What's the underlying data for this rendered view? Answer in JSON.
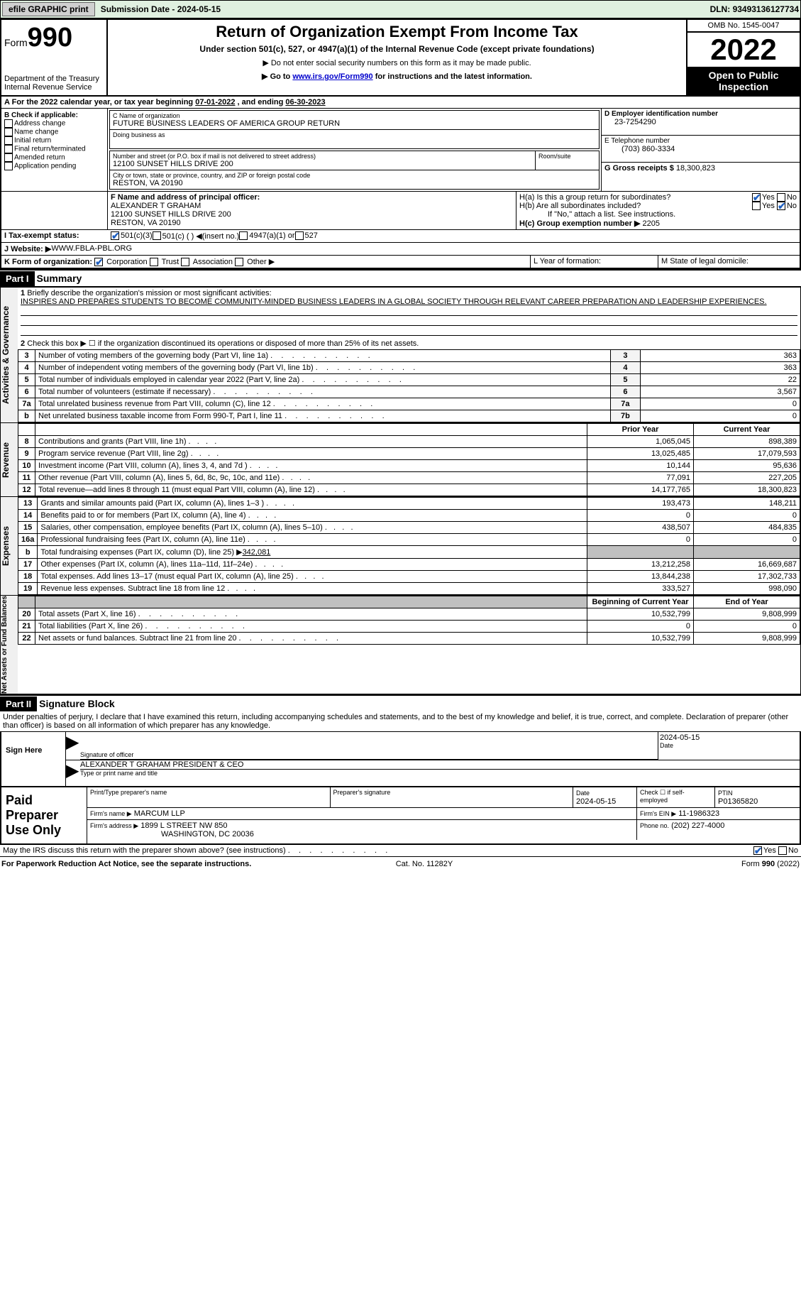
{
  "topbar": {
    "efile": "efile GRAPHIC print",
    "subdate_label": "Submission Date - ",
    "subdate": "2024-05-15",
    "dln_label": "DLN: ",
    "dln": "93493136127734"
  },
  "header": {
    "form_label": "Form",
    "form_num": "990",
    "dept": "Department of the Treasury",
    "irs": "Internal Revenue Service",
    "title": "Return of Organization Exempt From Income Tax",
    "subtitle": "Under section 501(c), 527, or 4947(a)(1) of the Internal Revenue Code (except private foundations)",
    "note1": "Do not enter social security numbers on this form as it may be made public.",
    "note2_pre": "Go to ",
    "note2_link": "www.irs.gov/Form990",
    "note2_post": " for instructions and the latest information.",
    "omb": "OMB No. 1545-0047",
    "year": "2022",
    "inspect": "Open to Public Inspection"
  },
  "A": {
    "text": "For the 2022 calendar year, or tax year beginning ",
    "begin": "07-01-2022",
    "mid": " , and ending ",
    "end": "06-30-2023"
  },
  "B": {
    "label": "B Check if applicable:",
    "opts": [
      "Address change",
      "Name change",
      "Initial return",
      "Final return/terminated",
      "Amended return",
      "Application pending"
    ]
  },
  "C": {
    "name_label": "C Name of organization",
    "name": "FUTURE BUSINESS LEADERS OF AMERICA GROUP RETURN",
    "dba_label": "Doing business as",
    "addr_label": "Number and street (or P.O. box if mail is not delivered to street address)",
    "room_label": "Room/suite",
    "addr": "12100 SUNSET HILLS DRIVE 200",
    "city_label": "City or town, state or province, country, and ZIP or foreign postal code",
    "city": "RESTON, VA  20190"
  },
  "D": {
    "label": "D Employer identification number",
    "val": "23-7254290"
  },
  "E": {
    "label": "E Telephone number",
    "val": "(703) 860-3334"
  },
  "G": {
    "label": "G Gross receipts $ ",
    "val": "18,300,823"
  },
  "F": {
    "label": "F  Name and address of principal officer:",
    "name": "ALEXANDER T GRAHAM",
    "addr": "12100 SUNSET HILLS DRIVE 200",
    "city": "RESTON, VA  20190"
  },
  "H": {
    "a_label": "H(a)  Is this a group return for subordinates?",
    "a_yes": true,
    "b_label": "H(b)  Are all subordinates included?",
    "b_no": true,
    "b_note": "If \"No,\" attach a list. See instructions.",
    "c_label": "H(c)  Group exemption number ▶",
    "c_val": "2205"
  },
  "I": {
    "label": "I  Tax-exempt status:",
    "o1": "501(c)(3)",
    "o2": "501(c) (  ) ◀(insert no.)",
    "o3": "4947(a)(1) or",
    "o4": "527"
  },
  "J": {
    "label": "J  Website: ▶",
    "val": "WWW.FBLA-PBL.ORG"
  },
  "K": {
    "label": "K Form of organization:",
    "o1": "Corporation",
    "o2": "Trust",
    "o3": "Association",
    "o4": "Other ▶"
  },
  "L": {
    "label": "L Year of formation:"
  },
  "M": {
    "label": "M State of legal domicile:"
  },
  "partI": {
    "header": "Part I",
    "title": "Summary",
    "mission_label": "Briefly describe the organization's mission or most significant activities:",
    "mission": "INSPIRES AND PREPARES STUDENTS TO BECOME COMMUNITY-MINDED BUSINESS LEADERS IN A GLOBAL SOCIETY THROUGH RELEVANT CAREER PREPARATION AND LEADERSHIP EXPERIENCES.",
    "line2": "Check this box ▶ ☐  if the organization discontinued its operations or disposed of more than 25% of its net assets.",
    "rows_single": [
      {
        "n": "3",
        "label": "Number of voting members of the governing body (Part VI, line 1a)",
        "box": "3",
        "val": "363"
      },
      {
        "n": "4",
        "label": "Number of independent voting members of the governing body (Part VI, line 1b)",
        "box": "4",
        "val": "363"
      },
      {
        "n": "5",
        "label": "Total number of individuals employed in calendar year 2022 (Part V, line 2a)",
        "box": "5",
        "val": "22"
      },
      {
        "n": "6",
        "label": "Total number of volunteers (estimate if necessary)",
        "box": "6",
        "val": "3,567"
      },
      {
        "n": "7a",
        "label": "Total unrelated business revenue from Part VIII, column (C), line 12",
        "box": "7a",
        "val": "0"
      },
      {
        "n": "b",
        "label": "Net unrelated business taxable income from Form 990-T, Part I, line 11",
        "box": "7b",
        "val": "0"
      }
    ],
    "col_prior": "Prior Year",
    "col_curr": "Current Year",
    "revenue_label": "Revenue",
    "revenue": [
      {
        "n": "8",
        "label": "Contributions and grants (Part VIII, line 1h)",
        "prior": "1,065,045",
        "curr": "898,389"
      },
      {
        "n": "9",
        "label": "Program service revenue (Part VIII, line 2g)",
        "prior": "13,025,485",
        "curr": "17,079,593"
      },
      {
        "n": "10",
        "label": "Investment income (Part VIII, column (A), lines 3, 4, and 7d )",
        "prior": "10,144",
        "curr": "95,636"
      },
      {
        "n": "11",
        "label": "Other revenue (Part VIII, column (A), lines 5, 6d, 8c, 9c, 10c, and 11e)",
        "prior": "77,091",
        "curr": "227,205"
      },
      {
        "n": "12",
        "label": "Total revenue—add lines 8 through 11 (must equal Part VIII, column (A), line 12)",
        "prior": "14,177,765",
        "curr": "18,300,823"
      }
    ],
    "expenses_label": "Expenses",
    "expenses": [
      {
        "n": "13",
        "label": "Grants and similar amounts paid (Part IX, column (A), lines 1–3 )",
        "prior": "193,473",
        "curr": "148,211"
      },
      {
        "n": "14",
        "label": "Benefits paid to or for members (Part IX, column (A), line 4)",
        "prior": "0",
        "curr": "0"
      },
      {
        "n": "15",
        "label": "Salaries, other compensation, employee benefits (Part IX, column (A), lines 5–10)",
        "prior": "438,507",
        "curr": "484,835"
      },
      {
        "n": "16a",
        "label": "Professional fundraising fees (Part IX, column (A), line 11e)",
        "prior": "0",
        "curr": "0"
      }
    ],
    "line_b": "Total fundraising expenses (Part IX, column (D), line 25) ▶",
    "line_b_val": "342,081",
    "expenses2": [
      {
        "n": "17",
        "label": "Other expenses (Part IX, column (A), lines 11a–11d, 11f–24e)",
        "prior": "13,212,258",
        "curr": "16,669,687"
      },
      {
        "n": "18",
        "label": "Total expenses. Add lines 13–17 (must equal Part IX, column (A), line 25)",
        "prior": "13,844,238",
        "curr": "17,302,733"
      },
      {
        "n": "19",
        "label": "Revenue less expenses. Subtract line 18 from line 12",
        "prior": "333,527",
        "curr": "998,090"
      }
    ],
    "net_label": "Net Assets or Fund Balances",
    "col_begin": "Beginning of Current Year",
    "col_end": "End of Year",
    "net": [
      {
        "n": "20",
        "label": "Total assets (Part X, line 16)",
        "prior": "10,532,799",
        "curr": "9,808,999"
      },
      {
        "n": "21",
        "label": "Total liabilities (Part X, line 26)",
        "prior": "0",
        "curr": "0"
      },
      {
        "n": "22",
        "label": "Net assets or fund balances. Subtract line 21 from line 20",
        "prior": "10,532,799",
        "curr": "9,808,999"
      }
    ]
  },
  "partII": {
    "header": "Part II",
    "title": "Signature Block",
    "perjury": "Under penalties of perjury, I declare that I have examined this return, including accompanying schedules and statements, and to the best of my knowledge and belief, it is true, correct, and complete. Declaration of preparer (other than officer) is based on all information of which preparer has any knowledge.",
    "sign_here": "Sign Here",
    "sig_officer": "Signature of officer",
    "date_label": "Date",
    "sig_date": "2024-05-15",
    "officer_name": "ALEXANDER T GRAHAM  PRESIDENT & CEO",
    "type_name": "Type or print name and title",
    "paid_label": "Paid Preparer Use Only",
    "prep_name_label": "Print/Type preparer's name",
    "prep_sig_label": "Preparer's signature",
    "prep_date_label": "Date",
    "prep_date": "2024-05-15",
    "check_self": "Check ☐ if self-employed",
    "ptin_label": "PTIN",
    "ptin": "P01365820",
    "firm_name_label": "Firm's name    ▶",
    "firm_name": "MARCUM LLP",
    "firm_ein_label": "Firm's EIN ▶",
    "firm_ein": "11-1986323",
    "firm_addr_label": "Firm's address ▶",
    "firm_addr": "1899 L STREET NW 850",
    "firm_city": "WASHINGTON, DC  20036",
    "phone_label": "Phone no.",
    "phone": "(202) 227-4000",
    "discuss": "May the IRS discuss this return with the preparer shown above? (see instructions)",
    "discuss_yes": true
  },
  "footer": {
    "left": "For Paperwork Reduction Act Notice, see the separate instructions.",
    "cat": "Cat. No. 11282Y",
    "right": "Form 990 (2022)"
  }
}
